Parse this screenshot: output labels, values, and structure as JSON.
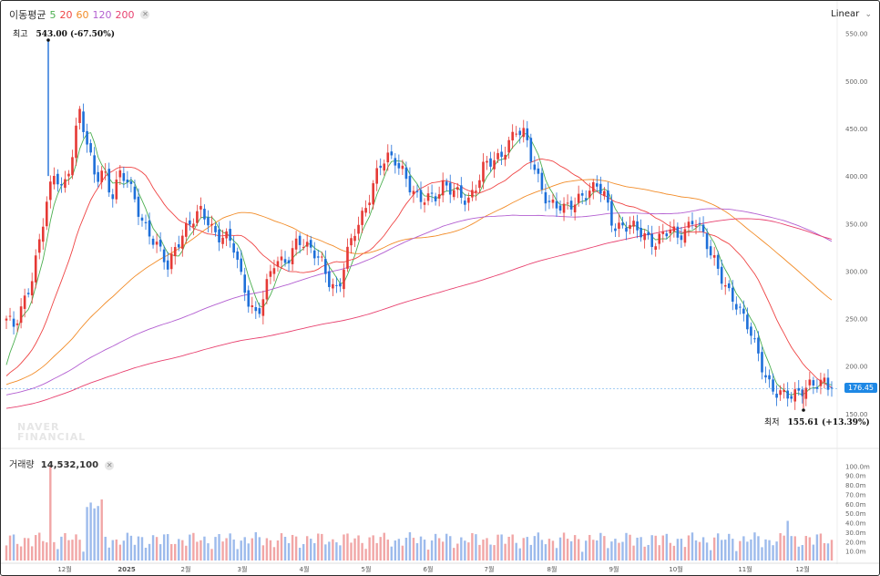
{
  "legend": {
    "title": "이동평균",
    "ma_labels": [
      "5",
      "20",
      "60",
      "120",
      "200"
    ],
    "ma_colors": [
      "#4caf50",
      "#ef4444",
      "#f28c28",
      "#b35fd1",
      "#e8416f"
    ],
    "close_icon": "close-icon"
  },
  "scale_button": "Linear",
  "high_annotation": {
    "label": "최고",
    "value": "543.00 (-67.50%)"
  },
  "low_annotation": {
    "label": "최저",
    "value": "155.61 (+13.39%)"
  },
  "current_price": "176.45",
  "watermark": [
    "NAVER",
    "FINANCIAL"
  ],
  "volume": {
    "label": "거래량",
    "value": "14,532,100",
    "close_icon": "close-icon"
  },
  "colors": {
    "up": "#e53935",
    "down": "#1e6fd9",
    "vol_up": "#f1a6a6",
    "vol_down": "#9dbbec",
    "price_tag": "#1e88e5"
  },
  "chart_data": {
    "type": "candlestick",
    "y_scale": "linear",
    "ylim": [
      130,
      570
    ],
    "y_ticks": [
      "550.00",
      "500.00",
      "450.00",
      "400.00",
      "350.00",
      "300.00",
      "250.00",
      "200.00",
      "150.00"
    ],
    "y_tick_values": [
      550,
      500,
      450,
      400,
      350,
      300,
      250,
      200,
      150
    ],
    "x_ticks": [
      "12월",
      "2025",
      "2월",
      "3월",
      "4월",
      "5월",
      "6월",
      "7월",
      "8월",
      "9월",
      "10월",
      "11월",
      "12월"
    ],
    "high": 543.0,
    "low": 155.61,
    "last": 176.45,
    "close_series": [
      250,
      238,
      262,
      290,
      330,
      372,
      400,
      385,
      420,
      470,
      430,
      395,
      410,
      380,
      400,
      392,
      372,
      352,
      335,
      318,
      302,
      330,
      345,
      352,
      360,
      352,
      340,
      338,
      325,
      292,
      268,
      256,
      278,
      305,
      310,
      318,
      335,
      322,
      318,
      312,
      290,
      276,
      312,
      342,
      362,
      382,
      405,
      418,
      420,
      408,
      385,
      370,
      378,
      382,
      392,
      382,
      378,
      375,
      392,
      410,
      412,
      418,
      438,
      450,
      442,
      412,
      392,
      375,
      368,
      362,
      370,
      382,
      385,
      388,
      376,
      348,
      350,
      348,
      340,
      335,
      332,
      340,
      342,
      332,
      345,
      360,
      340,
      315,
      300,
      285,
      270,
      250,
      232,
      212,
      188,
      172,
      166,
      168,
      176,
      182,
      178,
      180,
      176
    ],
    "volume_ylim": [
      0,
      110
    ],
    "volume_ticks": [
      "100.0m",
      "90.0m",
      "80.0m",
      "70.0m",
      "60.0m",
      "50.0m",
      "40.0m",
      "30.0m",
      "20.0m",
      "10.0m"
    ],
    "volume_tick_values": [
      100,
      90,
      80,
      70,
      60,
      50,
      40,
      30,
      20,
      10
    ],
    "ma_series": [
      {
        "name": "5"
      },
      {
        "name": "20"
      },
      {
        "name": "60"
      },
      {
        "name": "120"
      },
      {
        "name": "200"
      }
    ]
  }
}
